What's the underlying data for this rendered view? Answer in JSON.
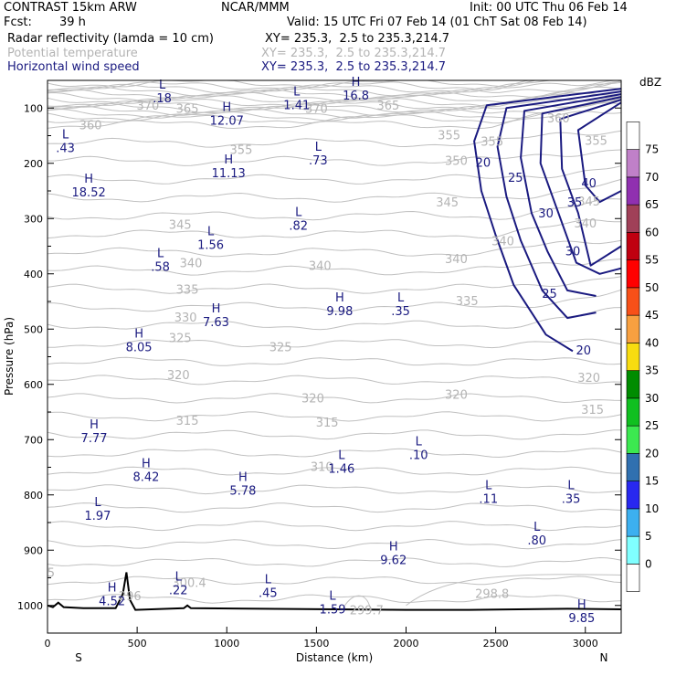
{
  "header": {
    "model": "CONTRAST 15km ARW",
    "org": "NCAR/MMM",
    "init": "Init: 00 UTC Thu 06 Feb 14",
    "fcst_label": "Fcst:",
    "fcst_value": "39 h",
    "valid": "Valid: 15 UTC Fri 07 Feb 14 (01 ChT Sat 08 Feb 14)",
    "fields": [
      {
        "name": "Radar reflectivity (lamda = 10 cm)",
        "xy": "XY= 235.3,  2.5 to 235.3,214.7",
        "color": "#000000"
      },
      {
        "name": "Potential temperature",
        "xy": "XY= 235.3,  2.5 to 235.3,214.7",
        "color": "#b4b4b4"
      },
      {
        "name": "Horizontal wind speed",
        "xy": "XY= 235.3,  2.5 to 235.3,214.7",
        "color": "#1a1a80"
      }
    ]
  },
  "chart_data": {
    "type": "cross-section",
    "xlabel": "Distance (km)",
    "ylabel": "Pressure (hPa)",
    "xlim": [
      0,
      3200
    ],
    "ylim": [
      1050,
      50
    ],
    "x_ticks": [
      0,
      500,
      1000,
      1500,
      2000,
      2500,
      3000
    ],
    "y_ticks": [
      100,
      200,
      300,
      400,
      500,
      600,
      700,
      800,
      900,
      1000
    ],
    "end_labels": {
      "left": "S",
      "right": "N"
    },
    "colorbar": {
      "unit": "dBZ",
      "levels": [
        0,
        5,
        10,
        15,
        20,
        25,
        30,
        35,
        40,
        45,
        50,
        55,
        60,
        65,
        70,
        75
      ],
      "colors": [
        "#ffffff",
        "#80ffff",
        "#3cb0f0",
        "#2828f0",
        "#3070b0",
        "#3ce850",
        "#10c020",
        "#008c00",
        "#f8dc10",
        "#f8a040",
        "#f85018",
        "#ff0000",
        "#c00010",
        "#a04058",
        "#9030b0",
        "#c080c8",
        "#ffffff"
      ]
    },
    "theta_labels": [
      {
        "x": 240,
        "p": 130,
        "v": "360"
      },
      {
        "x": 560,
        "p": 95,
        "v": "370"
      },
      {
        "x": 780,
        "p": 100,
        "v": "365"
      },
      {
        "x": 1500,
        "p": 100,
        "v": "370"
      },
      {
        "x": 1900,
        "p": 95,
        "v": "365"
      },
      {
        "x": 2850,
        "p": 118,
        "v": "360"
      },
      {
        "x": 1080,
        "p": 175,
        "v": "355"
      },
      {
        "x": 2240,
        "p": 148,
        "v": "355"
      },
      {
        "x": 2480,
        "p": 160,
        "v": "355"
      },
      {
        "x": 3060,
        "p": 158,
        "v": "355"
      },
      {
        "x": 2280,
        "p": 195,
        "v": "350"
      },
      {
        "x": 2230,
        "p": 270,
        "v": "345"
      },
      {
        "x": 3020,
        "p": 268,
        "v": "345"
      },
      {
        "x": 740,
        "p": 310,
        "v": "345"
      },
      {
        "x": 2540,
        "p": 340,
        "v": "340"
      },
      {
        "x": 3000,
        "p": 308,
        "v": "340"
      },
      {
        "x": 800,
        "p": 380,
        "v": "340"
      },
      {
        "x": 1520,
        "p": 385,
        "v": "340"
      },
      {
        "x": 2280,
        "p": 372,
        "v": "340"
      },
      {
        "x": 780,
        "p": 428,
        "v": "335"
      },
      {
        "x": 2340,
        "p": 448,
        "v": "335"
      },
      {
        "x": 770,
        "p": 478,
        "v": "330"
      },
      {
        "x": 740,
        "p": 515,
        "v": "325"
      },
      {
        "x": 1300,
        "p": 532,
        "v": "325"
      },
      {
        "x": 730,
        "p": 582,
        "v": "320"
      },
      {
        "x": 1480,
        "p": 624,
        "v": "320"
      },
      {
        "x": 2280,
        "p": 618,
        "v": "320"
      },
      {
        "x": 3020,
        "p": 587,
        "v": "320"
      },
      {
        "x": 780,
        "p": 665,
        "v": "315"
      },
      {
        "x": 1560,
        "p": 668,
        "v": "315"
      },
      {
        "x": 3040,
        "p": 645,
        "v": "315"
      },
      {
        "x": 1530,
        "p": 748,
        "v": "310"
      },
      {
        "x": 460,
        "p": 982,
        "v": "296"
      },
      {
        "x": 790,
        "p": 958,
        "v": "300.4"
      },
      {
        "x": 1780,
        "p": 1008,
        "v": "299.7"
      },
      {
        "x": 2480,
        "p": 978,
        "v": "298.8"
      },
      {
        "x": 20,
        "p": 940,
        "v": "5"
      }
    ],
    "wind_contour_labels": [
      {
        "x": 2430,
        "p": 198,
        "v": "20"
      },
      {
        "x": 2610,
        "p": 225,
        "v": "25"
      },
      {
        "x": 2780,
        "p": 290,
        "v": "30"
      },
      {
        "x": 3020,
        "p": 235,
        "v": "40"
      },
      {
        "x": 2940,
        "p": 270,
        "v": "35"
      },
      {
        "x": 2930,
        "p": 358,
        "v": "30"
      },
      {
        "x": 2800,
        "p": 435,
        "v": "25"
      },
      {
        "x": 2990,
        "p": 538,
        "v": "20"
      }
    ],
    "extrema": [
      {
        "type": "L",
        "x": 640,
        "p": 70,
        "v": ".18"
      },
      {
        "type": "L",
        "x": 1390,
        "p": 82,
        "v": "1.41"
      },
      {
        "type": "H",
        "x": 1720,
        "p": 65,
        "v": "16.8"
      },
      {
        "type": "H",
        "x": 1000,
        "p": 110,
        "v": "12.07"
      },
      {
        "type": "L",
        "x": 100,
        "p": 160,
        "v": ".43"
      },
      {
        "type": "L",
        "x": 1510,
        "p": 182,
        "v": ".73"
      },
      {
        "type": "H",
        "x": 1010,
        "p": 205,
        "v": "11.13"
      },
      {
        "type": "H",
        "x": 230,
        "p": 240,
        "v": "18.52"
      },
      {
        "type": "L",
        "x": 1400,
        "p": 300,
        "v": ".82"
      },
      {
        "type": "L",
        "x": 910,
        "p": 335,
        "v": "1.56"
      },
      {
        "type": "L",
        "x": 630,
        "p": 375,
        "v": ".58"
      },
      {
        "type": "H",
        "x": 1630,
        "p": 455,
        "v": "9.98"
      },
      {
        "type": "L",
        "x": 1970,
        "p": 455,
        "v": ".35"
      },
      {
        "type": "H",
        "x": 940,
        "p": 475,
        "v": "7.63"
      },
      {
        "type": "H",
        "x": 510,
        "p": 520,
        "v": "8.05"
      },
      {
        "type": "H",
        "x": 260,
        "p": 685,
        "v": "7.77"
      },
      {
        "type": "L",
        "x": 2070,
        "p": 715,
        "v": ".10"
      },
      {
        "type": "L",
        "x": 1640,
        "p": 740,
        "v": "1.46"
      },
      {
        "type": "H",
        "x": 550,
        "p": 755,
        "v": "8.42"
      },
      {
        "type": "H",
        "x": 1090,
        "p": 780,
        "v": "5.78"
      },
      {
        "type": "L",
        "x": 2460,
        "p": 795,
        "v": ".11"
      },
      {
        "type": "L",
        "x": 2920,
        "p": 795,
        "v": ".35"
      },
      {
        "type": "L",
        "x": 280,
        "p": 825,
        "v": "1.97"
      },
      {
        "type": "L",
        "x": 2730,
        "p": 870,
        "v": ".80"
      },
      {
        "type": "H",
        "x": 1930,
        "p": 905,
        "v": "9.62"
      },
      {
        "type": "L",
        "x": 730,
        "p": 960,
        "v": ".22"
      },
      {
        "type": "L",
        "x": 1230,
        "p": 965,
        "v": ".45"
      },
      {
        "type": "H",
        "x": 360,
        "p": 980,
        "v": "4.52"
      },
      {
        "type": "L",
        "x": 1590,
        "p": 995,
        "v": "1.59"
      },
      {
        "type": "H",
        "x": 2980,
        "p": 1010,
        "v": "9.85"
      }
    ]
  }
}
